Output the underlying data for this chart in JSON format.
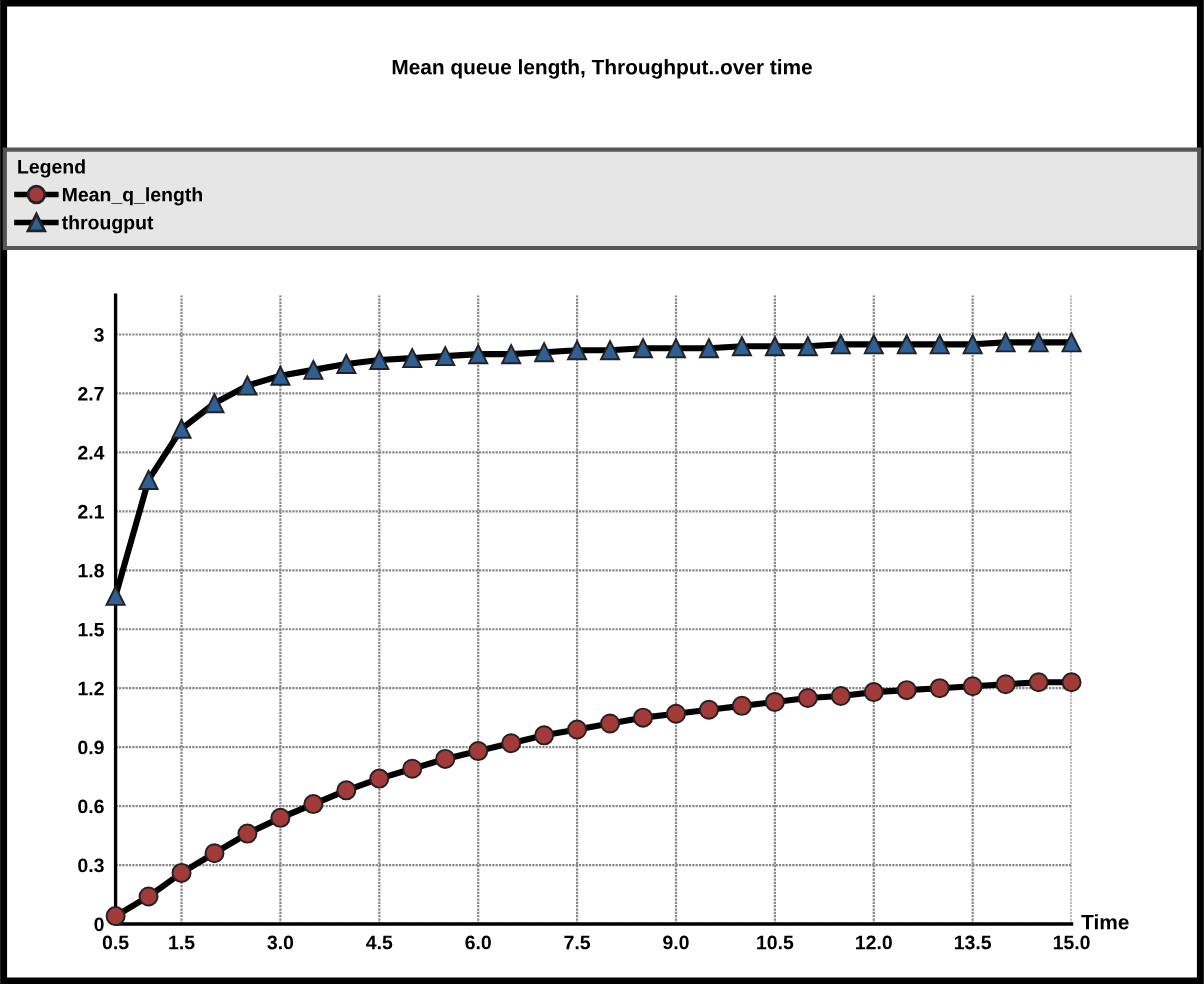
{
  "chart_data": {
    "type": "line",
    "title": "Mean queue length, Throughput..over time",
    "legend_title": "Legend",
    "xlabel": "Time",
    "x": [
      0.5,
      1.0,
      1.5,
      2.0,
      2.5,
      3.0,
      3.5,
      4.0,
      4.5,
      5.0,
      5.5,
      6.0,
      6.5,
      7.0,
      7.5,
      8.0,
      8.5,
      9.0,
      9.5,
      10.0,
      10.5,
      11.0,
      11.5,
      12.0,
      12.5,
      13.0,
      13.5,
      14.0,
      14.5,
      15.0
    ],
    "series": [
      {
        "name": "Mean_q_length",
        "color": "#a33a3a",
        "marker": "circle",
        "values": [
          0.04,
          0.14,
          0.26,
          0.36,
          0.46,
          0.54,
          0.61,
          0.68,
          0.74,
          0.79,
          0.84,
          0.88,
          0.92,
          0.96,
          0.99,
          1.02,
          1.05,
          1.07,
          1.09,
          1.11,
          1.13,
          1.15,
          1.16,
          1.18,
          1.19,
          1.2,
          1.21,
          1.22,
          1.23,
          1.23
        ]
      },
      {
        "name": "througput",
        "color": "#2e5f95",
        "marker": "triangle",
        "values": [
          1.67,
          2.26,
          2.52,
          2.65,
          2.74,
          2.79,
          2.82,
          2.85,
          2.87,
          2.88,
          2.89,
          2.9,
          2.9,
          2.91,
          2.92,
          2.92,
          2.93,
          2.93,
          2.93,
          2.94,
          2.94,
          2.94,
          2.95,
          2.95,
          2.95,
          2.95,
          2.95,
          2.96,
          2.96,
          2.96
        ]
      }
    ],
    "xlim": [
      0.5,
      15.0
    ],
    "ylim": [
      0,
      3.2
    ],
    "xticks": [
      {
        "value": 0.5,
        "label": "0.5"
      },
      {
        "value": 1.5,
        "label": "1.5"
      },
      {
        "value": 3.0,
        "label": "3.0"
      },
      {
        "value": 4.5,
        "label": "4.5"
      },
      {
        "value": 6.0,
        "label": "6.0"
      },
      {
        "value": 7.5,
        "label": "7.5"
      },
      {
        "value": 9.0,
        "label": "9.0"
      },
      {
        "value": 10.5,
        "label": "10.5"
      },
      {
        "value": 12.0,
        "label": "12.0"
      },
      {
        "value": 13.5,
        "label": "13.5"
      },
      {
        "value": 15.0,
        "label": "15.0"
      }
    ],
    "yticks": [
      0,
      0.3,
      0.6,
      0.9,
      1.2,
      1.5,
      1.8,
      2.1,
      2.4,
      2.7,
      3
    ],
    "grid": true,
    "legend": "top left",
    "line_style": "solid"
  }
}
